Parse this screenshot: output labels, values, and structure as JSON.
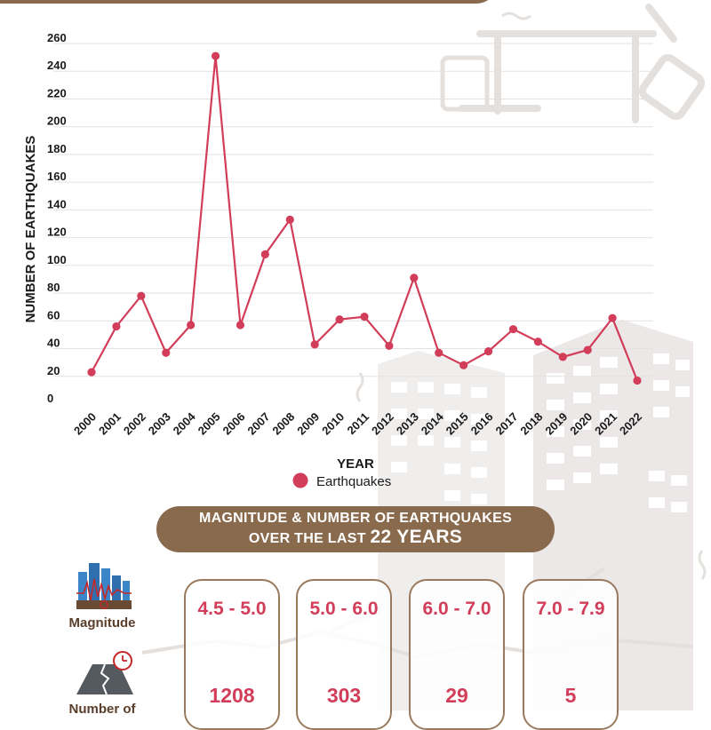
{
  "chart_data": {
    "type": "line",
    "xlabel": "YEAR",
    "ylabel": "NUMBER OF EARTHQUAKES",
    "ylim": [
      0,
      260
    ],
    "yticks": [
      0,
      20,
      40,
      60,
      80,
      100,
      120,
      140,
      160,
      180,
      200,
      220,
      240,
      260
    ],
    "grid": true,
    "legend": "bottom",
    "categories": [
      "2000",
      "2001",
      "2002",
      "2003",
      "2004",
      "2005",
      "2006",
      "2007",
      "2008",
      "2009",
      "2010",
      "2011",
      "2012",
      "2013",
      "2014",
      "2015",
      "2016",
      "2017",
      "2018",
      "2019",
      "2020",
      "2021",
      "2022"
    ],
    "series": [
      {
        "name": "Earthquakes",
        "color": "#d23d5a",
        "values": [
          23,
          56,
          78,
          37,
          57,
          251,
          57,
          108,
          133,
          43,
          61,
          63,
          42,
          91,
          37,
          28,
          38,
          54,
          45,
          34,
          39,
          62,
          17
        ]
      }
    ]
  },
  "legend_label": "Earthquakes",
  "banner": {
    "line1": "MAGNITUDE & NUMBER OF EARTHQUAKES",
    "line2_prefix": "OVER THE LAST",
    "line2_big": "22 YEARS"
  },
  "side_labels": {
    "magnitude": "Magnitude",
    "number": "Number of"
  },
  "icons": {
    "magnitude": "seismograph-city-icon",
    "number": "cracked-road-clock-icon"
  },
  "magnitude_table": [
    {
      "range": "4.5 - 5.0",
      "count": "1208"
    },
    {
      "range": "5.0 - 6.0",
      "count": "303"
    },
    {
      "range": "6.0 - 7.0",
      "count": "29"
    },
    {
      "range": "7.0 - 7.9",
      "count": "5"
    }
  ],
  "colors": {
    "accent": "#d23d5a",
    "brown": "#8a6a4d",
    "text_dark": "#1a1a1a"
  }
}
